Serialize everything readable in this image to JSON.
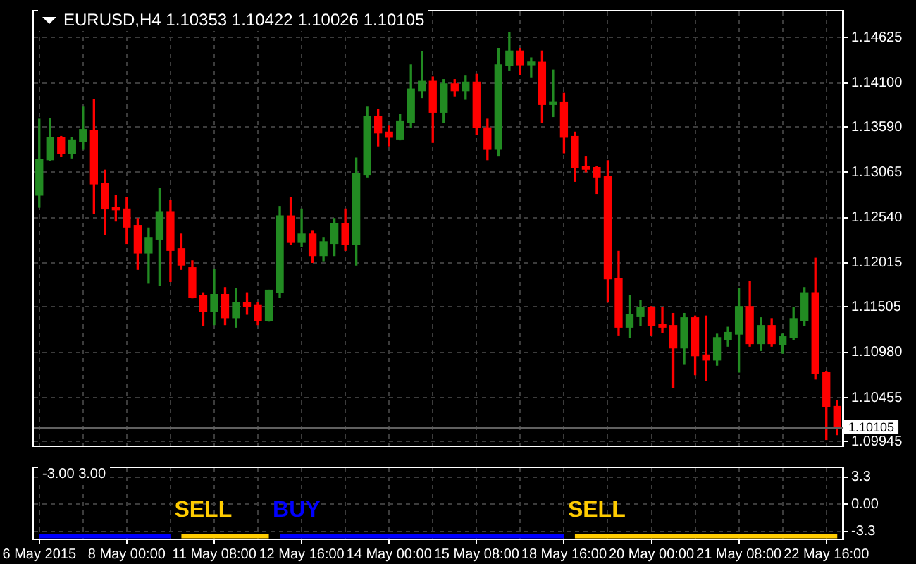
{
  "chart_data": [
    {
      "type": "candlestick",
      "title": "EURUSD,H4 1.10353 1.10422 1.10026 1.10105",
      "categories": [
        null,
        null,
        null,
        null,
        null,
        null,
        null,
        null,
        null,
        null,
        null,
        null,
        null,
        null,
        null,
        null,
        null,
        null,
        null,
        null,
        null,
        null,
        null,
        null,
        null,
        null,
        null,
        null,
        null,
        null,
        null,
        null,
        null,
        null,
        null,
        null,
        null,
        null,
        null,
        null,
        null,
        null,
        null,
        null,
        null,
        null,
        null,
        null,
        null,
        null,
        null,
        null,
        null,
        null,
        null,
        null,
        null,
        null,
        null,
        null,
        null,
        null,
        null,
        null,
        null,
        null,
        null,
        null,
        null,
        null,
        null,
        null,
        null,
        null
      ],
      "ohlc": [
        [
          1.128,
          1.1368,
          1.1266,
          1.1321
        ],
        [
          1.1321,
          1.1369,
          1.132,
          1.1347
        ],
        [
          1.1347,
          1.1348,
          1.1325,
          1.1328
        ],
        [
          1.1328,
          1.1347,
          1.1323,
          1.1344
        ],
        [
          1.1342,
          1.1382,
          1.1333,
          1.1356
        ],
        [
          1.1355,
          1.1391,
          1.1259,
          1.1293
        ],
        [
          1.1294,
          1.1309,
          1.1234,
          1.1264
        ],
        [
          1.1266,
          1.128,
          1.125,
          1.1263
        ],
        [
          1.1264,
          1.1277,
          1.1224,
          1.1243
        ],
        [
          1.1245,
          1.1253,
          1.1194,
          1.1213
        ],
        [
          1.1213,
          1.1242,
          1.1178,
          1.1231
        ],
        [
          1.1229,
          1.1288,
          1.1175,
          1.1261
        ],
        [
          1.1261,
          1.1274,
          1.118,
          1.1216
        ],
        [
          1.1218,
          1.1235,
          1.1194,
          1.1199
        ],
        [
          1.1196,
          1.1204,
          1.1161,
          1.1162
        ],
        [
          1.1164,
          1.1167,
          1.1129,
          1.1145
        ],
        [
          1.1145,
          1.1194,
          1.113,
          1.1165
        ],
        [
          1.1165,
          1.1173,
          1.113,
          1.1138
        ],
        [
          1.1138,
          1.1172,
          1.1127,
          1.1156
        ],
        [
          1.1156,
          1.1167,
          1.1142,
          1.1151
        ],
        [
          1.1153,
          1.1156,
          1.113,
          1.1135
        ],
        [
          1.1135,
          1.117,
          1.1134,
          1.117
        ],
        [
          1.1167,
          1.1267,
          1.1162,
          1.1256
        ],
        [
          1.1256,
          1.1277,
          1.1223,
          1.1226
        ],
        [
          1.1226,
          1.1264,
          1.122,
          1.1235
        ],
        [
          1.1235,
          1.1239,
          1.1202,
          1.121
        ],
        [
          1.121,
          1.1231,
          1.1204,
          1.1226
        ],
        [
          1.1224,
          1.1253,
          1.121,
          1.1247
        ],
        [
          1.1247,
          1.1264,
          1.1216,
          1.1223
        ],
        [
          1.1223,
          1.1323,
          1.1199,
          1.1305
        ],
        [
          1.1304,
          1.1382,
          1.1301,
          1.1371
        ],
        [
          1.1371,
          1.1379,
          1.1337,
          1.1352
        ],
        [
          1.1353,
          1.136,
          1.1337,
          1.1347
        ],
        [
          1.1345,
          1.1374,
          1.1344,
          1.1366
        ],
        [
          1.1364,
          1.1431,
          1.1358,
          1.1403
        ],
        [
          1.1401,
          1.1446,
          1.1393,
          1.1412
        ],
        [
          1.1412,
          1.1417,
          1.1341,
          1.1376
        ],
        [
          1.1376,
          1.1414,
          1.1364,
          1.1409
        ],
        [
          1.1409,
          1.1414,
          1.1395,
          1.1401
        ],
        [
          1.1401,
          1.1418,
          1.1391,
          1.1411
        ],
        [
          1.1411,
          1.142,
          1.135,
          1.1358
        ],
        [
          1.1358,
          1.1368,
          1.1321,
          1.1333
        ],
        [
          1.1333,
          1.145,
          1.1326,
          1.1431
        ],
        [
          1.143,
          1.1468,
          1.1425,
          1.1447
        ],
        [
          1.1447,
          1.145,
          1.142,
          1.1431
        ],
        [
          1.1431,
          1.1439,
          1.1417,
          1.1434
        ],
        [
          1.1434,
          1.1447,
          1.1364,
          1.1385
        ],
        [
          1.1385,
          1.1425,
          1.1371,
          1.1388
        ],
        [
          1.1388,
          1.1398,
          1.1329,
          1.1347
        ],
        [
          1.1348,
          1.1353,
          1.1296,
          1.1312
        ],
        [
          1.1313,
          1.1325,
          1.1307,
          1.131
        ],
        [
          1.1312,
          1.1313,
          1.1282,
          1.1301
        ],
        [
          1.1302,
          1.132,
          1.1156,
          1.1183
        ],
        [
          1.1183,
          1.1215,
          1.1118,
          1.1127
        ],
        [
          1.1127,
          1.1164,
          1.1115,
          1.1142
        ],
        [
          1.114,
          1.1158,
          1.1129,
          1.115
        ],
        [
          1.115,
          1.1151,
          1.1118,
          1.1129
        ],
        [
          1.113,
          1.115,
          1.1121,
          1.1127
        ],
        [
          1.1129,
          1.1143,
          1.1057,
          1.1103
        ],
        [
          1.1103,
          1.1143,
          1.1084,
          1.1138
        ],
        [
          1.1138,
          1.114,
          1.1072,
          1.1094
        ],
        [
          1.1095,
          1.114,
          1.1065,
          1.1089
        ],
        [
          1.1089,
          1.1119,
          1.1083,
          1.1115
        ],
        [
          1.1113,
          1.1127,
          1.1105,
          1.1121
        ],
        [
          1.1119,
          1.1172,
          1.1075,
          1.1151
        ],
        [
          1.1151,
          1.118,
          1.1105,
          1.1108
        ],
        [
          1.1108,
          1.1138,
          1.11,
          1.1129
        ],
        [
          1.1129,
          1.1137,
          1.1105,
          1.1108
        ],
        [
          1.1107,
          1.1119,
          1.1097,
          1.1116
        ],
        [
          1.1115,
          1.115,
          1.1113,
          1.1137
        ],
        [
          1.1135,
          1.1173,
          1.1129,
          1.1167
        ],
        [
          1.1167,
          1.1207,
          1.1067,
          1.1073
        ],
        [
          1.1075,
          1.1076,
          1.0997,
          1.1035
        ],
        [
          1.10353,
          1.10422,
          1.10026,
          1.10105
        ]
      ],
      "ylim": [
        1.099,
        1.1493
      ],
      "yticks": [
        1.14625,
        {
          "value": 1.141,
          "label": "1.14100"
        },
        {
          "value": 1.1359,
          "label": "1.13590"
        },
        1.13065,
        {
          "value": 1.1254,
          "label": "1.12540"
        },
        1.12015,
        1.11505,
        {
          "value": 1.1098,
          "label": "1.10980"
        },
        1.10455,
        1.09945
      ],
      "ref_lines": [
        {
          "axis": "y",
          "value": 1.10105,
          "label": "1.10105"
        }
      ],
      "grid": true,
      "legend": false
    },
    {
      "type": "line",
      "title": "-3.00 3.00",
      "categories": [
        "6 May 2015",
        null,
        null,
        null,
        null,
        null,
        null,
        null,
        "8 May 00:00",
        null,
        null,
        null,
        null,
        null,
        null,
        null,
        "11 May 08:00",
        null,
        null,
        null,
        null,
        null,
        null,
        null,
        "12 May 16:00",
        null,
        null,
        null,
        null,
        null,
        null,
        null,
        "14 May 00:00",
        null,
        null,
        null,
        null,
        null,
        null,
        null,
        "15 May 08:00",
        null,
        null,
        null,
        null,
        null,
        null,
        null,
        "18 May 16:00",
        null,
        null,
        null,
        null,
        null,
        null,
        null,
        "20 May 00:00",
        null,
        null,
        null,
        null,
        null,
        null,
        null,
        "21 May 08:00",
        null,
        null,
        null,
        null,
        null,
        null,
        null,
        "22 May 16:00",
        null
      ],
      "series": [
        {
          "color": "#0000ff",
          "values": [
            -3.9,
            -3.9,
            -3.9,
            -3.9,
            -3.9,
            -3.9,
            -3.9,
            -3.9,
            -3.9,
            -3.9,
            -3.9,
            -3.9,
            -3.9,
            null,
            null,
            null,
            null,
            null,
            null,
            null,
            null,
            null,
            -3.9,
            -3.9,
            -3.9,
            -3.9,
            -3.9,
            -3.9,
            -3.9,
            -3.9,
            -3.9,
            -3.9,
            -3.9,
            -3.9,
            -3.9,
            -3.9,
            -3.9,
            -3.9,
            -3.9,
            -3.9,
            -3.9,
            -3.9,
            -3.9,
            -3.9,
            -3.9,
            -3.9,
            -3.9,
            -3.9,
            -3.9,
            null,
            null,
            null,
            null,
            null,
            null,
            null,
            null,
            null,
            null,
            null,
            null,
            null,
            null,
            null,
            null,
            null,
            null,
            null,
            null,
            null,
            null,
            null,
            null,
            null
          ]
        },
        {
          "color": "#ffcc00",
          "values": [
            null,
            null,
            null,
            null,
            null,
            null,
            null,
            null,
            null,
            null,
            null,
            null,
            null,
            -3.9,
            -3.9,
            -3.9,
            -3.9,
            -3.9,
            -3.9,
            -3.9,
            -3.9,
            -3.9,
            null,
            null,
            null,
            null,
            null,
            null,
            null,
            null,
            null,
            null,
            null,
            null,
            null,
            null,
            null,
            null,
            null,
            null,
            null,
            null,
            null,
            null,
            null,
            null,
            null,
            null,
            null,
            -3.9,
            -3.9,
            -3.9,
            -3.9,
            -3.9,
            -3.9,
            -3.9,
            -3.9,
            -3.9,
            -3.9,
            -3.9,
            -3.9,
            -3.9,
            -3.9,
            -3.9,
            -3.9,
            -3.9,
            -3.9,
            -3.9,
            -3.9,
            -3.9,
            -3.9,
            -3.9,
            -3.9,
            -3.9
          ]
        }
      ],
      "annotations": [
        "SELL",
        "BUY",
        "SELL"
      ],
      "ylim": [
        -4.2,
        4.4
      ],
      "yticks": [
        3.3,
        {
          "value": 0,
          "label": "0.00"
        },
        -3.3
      ],
      "grid": true,
      "marker": "none",
      "legend": false
    }
  ]
}
